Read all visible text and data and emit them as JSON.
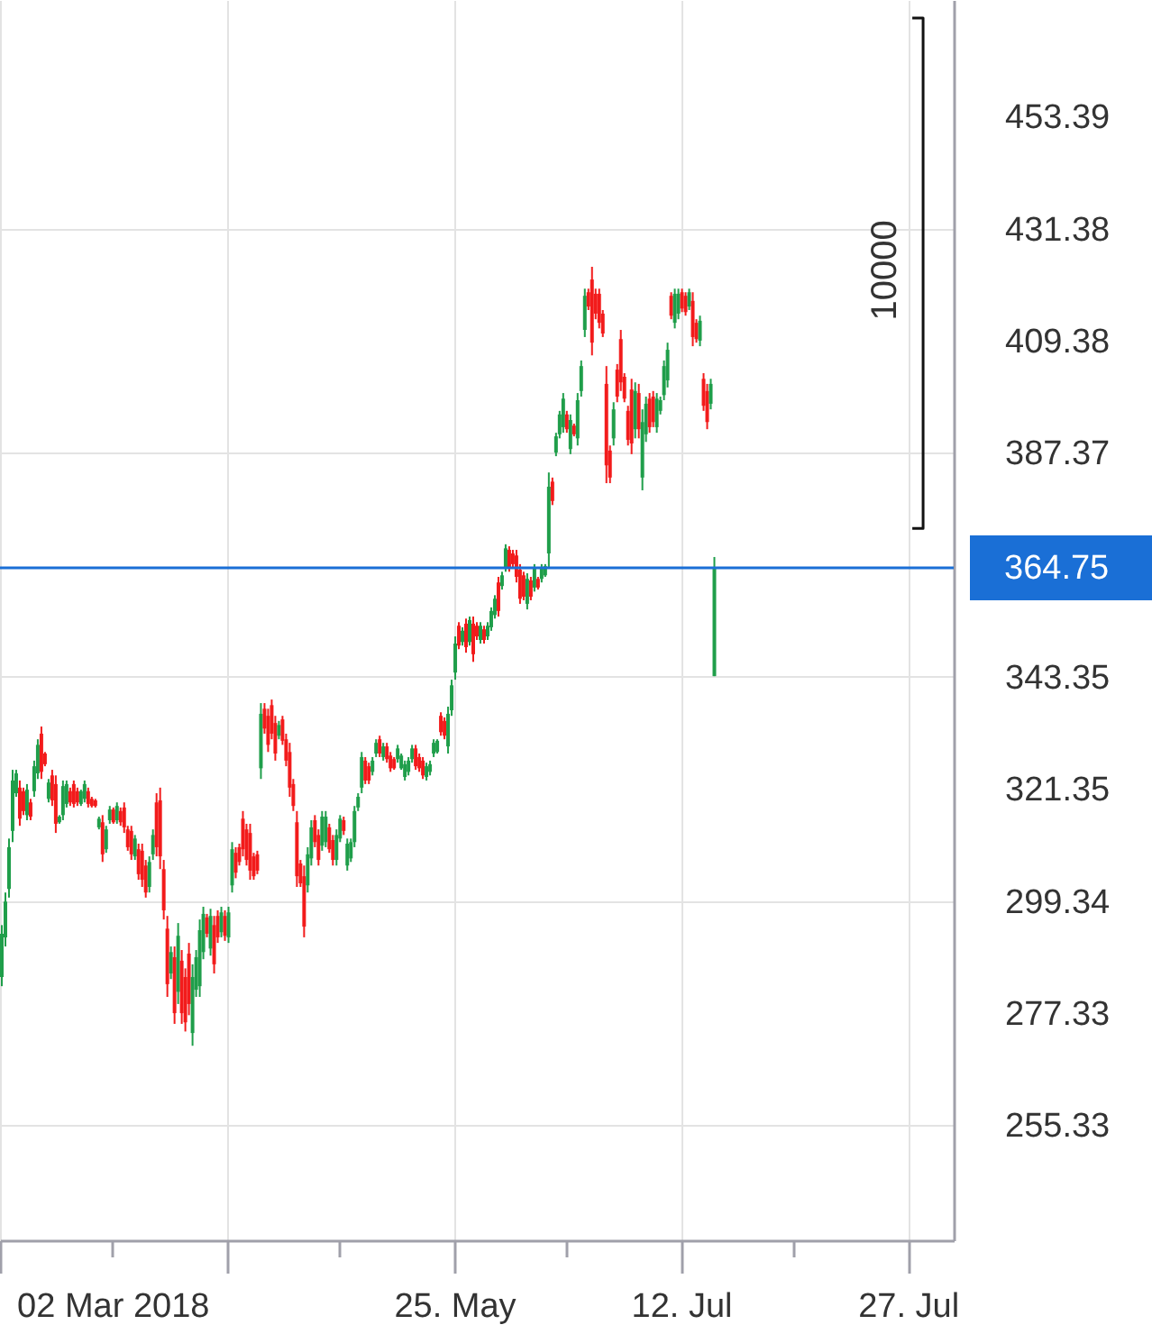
{
  "chart_data": {
    "type": "candlestick",
    "categories": [
      null,
      null,
      null,
      null,
      null,
      null,
      null,
      null,
      null,
      null,
      null,
      null,
      null,
      null,
      null,
      null,
      null,
      null,
      null,
      null,
      null,
      null,
      null,
      null,
      null,
      null,
      null,
      null,
      null,
      null,
      null,
      "02 Mar 2018",
      null,
      null,
      null,
      null,
      null,
      null,
      null,
      null,
      null,
      null,
      null,
      null,
      null,
      null,
      null,
      null,
      null,
      null,
      null,
      null,
      null,
      null,
      null,
      null,
      null,
      null,
      null,
      null,
      null,
      null,
      null,
      null,
      null,
      null,
      null,
      null,
      null,
      null,
      null,
      null,
      null,
      null,
      null,
      null,
      null,
      null,
      null,
      null,
      null,
      null,
      null,
      null,
      null,
      null,
      null,
      null,
      null,
      null,
      null,
      null,
      null,
      null,
      null,
      null,
      null,
      null,
      null,
      null,
      null,
      null,
      null,
      null,
      null,
      null,
      null,
      null,
      null,
      null,
      null,
      null,
      null,
      null,
      null,
      null,
      null,
      null,
      null,
      null,
      null,
      null,
      null,
      null,
      null,
      null,
      "25. May",
      null,
      null,
      null,
      null,
      null,
      null,
      null,
      null,
      null,
      null,
      null,
      null,
      null,
      null,
      null,
      null,
      null,
      null,
      null,
      null,
      null,
      null,
      null,
      null,
      null,
      null,
      null,
      null,
      null,
      null,
      null,
      null,
      null,
      null,
      null,
      null,
      null,
      null,
      null,
      null,
      null,
      null,
      null,
      null,
      null,
      null,
      null,
      null,
      null,
      null,
      null,
      null,
      null,
      null,
      null,
      null,
      null,
      null,
      null,
      null,
      null,
      null,
      "12. Jul",
      null,
      null,
      null,
      null,
      null,
      null,
      null,
      null,
      null,
      null,
      null,
      null,
      null,
      null,
      null,
      null,
      null,
      null,
      null,
      null,
      null,
      null,
      null,
      null,
      null,
      null,
      null,
      null,
      null,
      null,
      null,
      null,
      null,
      null,
      null,
      null,
      null,
      null,
      null,
      null,
      null,
      null,
      null,
      null,
      null,
      null,
      null,
      null,
      null,
      null,
      null,
      null,
      null,
      null,
      null,
      null,
      null,
      null,
      null,
      null,
      null,
      null,
      "27. Jul",
      null,
      null,
      null,
      null,
      null,
      null,
      null,
      null,
      null,
      null,
      null,
      null
    ],
    "ohlc": [
      [
        284.4,
        294.6,
        282.6,
        292.9
      ],
      [
        292.2,
        301.0,
        290.4,
        299.2
      ],
      [
        301.7,
        311.6,
        300.0,
        309.9
      ],
      [
        313.1,
        325.1,
        310.9,
        323.0
      ],
      [
        320.5,
        325.1,
        319.8,
        324.4
      ],
      [
        321.6,
        323.0,
        314.1,
        315.5
      ],
      [
        320.9,
        321.6,
        316.2,
        317.0
      ],
      [
        316.2,
        322.3,
        315.2,
        321.2
      ],
      [
        318.7,
        319.4,
        315.2,
        315.9
      ],
      [
        320.9,
        326.9,
        319.8,
        325.8
      ],
      [
        324.4,
        331.1,
        323.3,
        330.0
      ],
      [
        332.2,
        333.6,
        323.3,
        324.7
      ],
      [
        328.3,
        328.6,
        325.8,
        326.2
      ],
      [
        319.4,
        323.3,
        318.7,
        322.6
      ],
      [
        324.0,
        325.1,
        318.0,
        319.1
      ],
      [
        322.3,
        324.0,
        312.7,
        314.5
      ],
      [
        314.8,
        316.2,
        314.5,
        315.9
      ],
      [
        316.2,
        323.0,
        315.2,
        321.9
      ],
      [
        318.4,
        323.0,
        317.7,
        322.3
      ],
      [
        320.9,
        321.6,
        318.0,
        318.7
      ],
      [
        322.3,
        323.0,
        317.7,
        318.4
      ],
      [
        320.9,
        321.6,
        318.0,
        318.7
      ],
      [
        318.4,
        321.2,
        318.0,
        320.9
      ],
      [
        319.4,
        323.0,
        318.7,
        322.3
      ],
      [
        320.9,
        321.6,
        317.7,
        318.4
      ],
      [
        319.4,
        319.8,
        317.7,
        318.0
      ],
      [
        319.1,
        319.4,
        317.7,
        318.0
      ],
      [
        313.8,
        315.9,
        313.4,
        315.5
      ],
      [
        314.8,
        316.2,
        307.0,
        308.5
      ],
      [
        309.5,
        314.1,
        308.8,
        313.4
      ],
      [
        315.2,
        318.0,
        314.5,
        317.3
      ],
      [
        317.3,
        317.7,
        314.5,
        314.8
      ],
      [
        315.2,
        318.7,
        314.5,
        318.0
      ],
      [
        317.0,
        317.7,
        314.1,
        314.8
      ],
      [
        317.7,
        318.7,
        312.7,
        313.8
      ],
      [
        313.4,
        314.1,
        309.2,
        309.9
      ],
      [
        313.1,
        314.1,
        307.4,
        308.5
      ],
      [
        308.1,
        312.3,
        307.4,
        311.6
      ],
      [
        309.5,
        310.6,
        303.5,
        304.6
      ],
      [
        309.2,
        310.6,
        302.1,
        303.5
      ],
      [
        306.3,
        307.4,
        300.0,
        301.0
      ],
      [
        302.1,
        308.1,
        301.0,
        307.0
      ],
      [
        308.5,
        313.4,
        307.4,
        312.3
      ],
      [
        318.7,
        320.5,
        308.1,
        309.9
      ],
      [
        319.1,
        321.6,
        305.6,
        308.1
      ],
      [
        305.6,
        307.4,
        295.7,
        297.5
      ],
      [
        293.9,
        296.4,
        280.5,
        283.0
      ],
      [
        285.1,
        290.4,
        284.0,
        289.3
      ],
      [
        288.3,
        290.4,
        275.2,
        277.3
      ],
      [
        281.5,
        295.0,
        279.1,
        292.5
      ],
      [
        287.6,
        289.7,
        275.2,
        277.3
      ],
      [
        284.4,
        286.1,
        273.7,
        275.5
      ],
      [
        289.0,
        291.1,
        276.9,
        279.1
      ],
      [
        273.4,
        286.9,
        270.9,
        284.4
      ],
      [
        281.9,
        289.7,
        280.5,
        288.3
      ],
      [
        282.6,
        295.7,
        280.5,
        293.6
      ],
      [
        289.3,
        298.2,
        287.9,
        296.8
      ],
      [
        296.1,
        296.8,
        292.2,
        292.9
      ],
      [
        290.0,
        297.8,
        288.6,
        296.4
      ],
      [
        294.6,
        296.4,
        285.1,
        286.9
      ],
      [
        296.4,
        297.5,
        291.1,
        292.2
      ],
      [
        293.2,
        298.2,
        292.2,
        297.1
      ],
      [
        296.4,
        297.5,
        291.5,
        292.5
      ],
      [
        292.2,
        298.2,
        291.1,
        297.1
      ],
      [
        302.4,
        310.9,
        301.0,
        309.5
      ],
      [
        308.8,
        309.9,
        303.8,
        304.9
      ],
      [
        309.9,
        310.6,
        306.3,
        307.0
      ],
      [
        315.5,
        317.0,
        308.1,
        309.5
      ],
      [
        313.4,
        314.5,
        306.3,
        307.4
      ],
      [
        312.7,
        314.5,
        303.5,
        305.3
      ],
      [
        308.1,
        308.8,
        303.5,
        304.2
      ],
      [
        308.5,
        309.2,
        304.6,
        305.3
      ],
      [
        325.4,
        338.2,
        323.3,
        336.1
      ],
      [
        337.1,
        338.2,
        332.2,
        333.2
      ],
      [
        335.7,
        337.1,
        328.6,
        330.0
      ],
      [
        337.8,
        338.9,
        331.1,
        332.2
      ],
      [
        334.3,
        335.7,
        326.9,
        328.3
      ],
      [
        331.8,
        334.7,
        331.1,
        333.9
      ],
      [
        335.0,
        335.7,
        330.0,
        330.8
      ],
      [
        331.1,
        332.2,
        325.8,
        326.9
      ],
      [
        328.6,
        330.4,
        319.8,
        321.6
      ],
      [
        322.3,
        323.3,
        317.0,
        318.0
      ],
      [
        314.8,
        317.0,
        302.1,
        304.2
      ],
      [
        306.7,
        307.4,
        302.1,
        302.8
      ],
      [
        304.2,
        306.3,
        292.2,
        294.3
      ],
      [
        302.4,
        309.9,
        301.0,
        308.5
      ],
      [
        307.7,
        315.2,
        306.3,
        313.8
      ],
      [
        315.2,
        316.2,
        309.9,
        310.9
      ],
      [
        312.3,
        313.4,
        306.3,
        307.4
      ],
      [
        310.2,
        317.0,
        309.2,
        315.9
      ],
      [
        310.9,
        317.0,
        309.9,
        315.9
      ],
      [
        313.8,
        314.5,
        308.8,
        309.5
      ],
      [
        311.3,
        312.3,
        306.3,
        307.4
      ],
      [
        307.4,
        313.4,
        306.3,
        312.3
      ],
      [
        311.6,
        316.2,
        310.9,
        315.5
      ],
      [
        315.2,
        315.9,
        312.3,
        313.1
      ],
      [
        306.3,
        311.6,
        305.3,
        310.6
      ],
      [
        307.7,
        311.6,
        307.0,
        310.9
      ],
      [
        310.9,
        318.0,
        309.9,
        317.0
      ],
      [
        317.7,
        320.5,
        317.0,
        319.8
      ],
      [
        321.6,
        328.6,
        320.5,
        327.6
      ],
      [
        326.9,
        327.6,
        322.3,
        323.0
      ],
      [
        325.8,
        326.5,
        322.3,
        323.0
      ],
      [
        324.7,
        327.6,
        324.0,
        326.9
      ],
      [
        328.3,
        331.1,
        327.6,
        330.4
      ],
      [
        331.1,
        331.8,
        327.6,
        328.3
      ],
      [
        327.6,
        330.4,
        326.9,
        329.7
      ],
      [
        329.7,
        330.4,
        326.5,
        327.2
      ],
      [
        327.9,
        328.6,
        324.7,
        325.4
      ],
      [
        327.2,
        327.6,
        325.1,
        325.4
      ],
      [
        327.2,
        330.0,
        326.5,
        329.3
      ],
      [
        325.4,
        328.3,
        325.1,
        327.9
      ],
      [
        323.7,
        326.9,
        323.0,
        326.2
      ],
      [
        324.7,
        327.6,
        324.0,
        326.9
      ],
      [
        327.2,
        330.0,
        326.5,
        329.3
      ],
      [
        329.3,
        330.0,
        325.1,
        325.8
      ],
      [
        327.6,
        328.3,
        324.7,
        325.4
      ],
      [
        326.9,
        327.6,
        323.3,
        324.0
      ],
      [
        323.7,
        326.5,
        323.0,
        325.8
      ],
      [
        324.7,
        326.9,
        324.0,
        326.2
      ],
      [
        328.3,
        331.1,
        327.6,
        330.4
      ],
      [
        328.6,
        331.1,
        328.3,
        330.8
      ],
      [
        335.7,
        336.4,
        331.8,
        332.5
      ],
      [
        334.7,
        335.4,
        331.1,
        331.8
      ],
      [
        329.7,
        337.5,
        328.3,
        336.1
      ],
      [
        336.8,
        342.8,
        335.7,
        341.7
      ],
      [
        344.2,
        351.3,
        342.8,
        349.9
      ],
      [
        353.4,
        354.1,
        348.8,
        349.5
      ],
      [
        350.2,
        353.1,
        349.5,
        352.4
      ],
      [
        353.8,
        354.8,
        348.1,
        349.2
      ],
      [
        350.2,
        355.2,
        349.5,
        354.5
      ],
      [
        353.8,
        355.2,
        346.3,
        347.8
      ],
      [
        353.4,
        354.1,
        350.6,
        351.3
      ],
      [
        350.6,
        354.1,
        349.9,
        353.4
      ],
      [
        352.7,
        353.4,
        349.9,
        350.6
      ],
      [
        351.3,
        354.1,
        350.6,
        353.4
      ],
      [
        353.1,
        357.0,
        352.4,
        356.3
      ],
      [
        355.5,
        359.4,
        354.8,
        358.7
      ],
      [
        361.9,
        363.0,
        355.2,
        356.3
      ],
      [
        361.2,
        364.0,
        360.5,
        363.3
      ],
      [
        364.8,
        369.4,
        364.0,
        368.6
      ],
      [
        368.3,
        369.0,
        364.0,
        364.8
      ],
      [
        367.6,
        368.3,
        364.8,
        365.5
      ],
      [
        367.2,
        368.3,
        361.9,
        363.0
      ],
      [
        364.4,
        365.5,
        357.7,
        358.7
      ],
      [
        363.3,
        364.0,
        358.4,
        359.1
      ],
      [
        357.7,
        363.7,
        356.6,
        362.6
      ],
      [
        362.3,
        363.0,
        358.4,
        359.1
      ],
      [
        360.9,
        365.5,
        360.1,
        364.8
      ],
      [
        362.6,
        363.0,
        360.5,
        360.9
      ],
      [
        362.6,
        365.5,
        361.9,
        364.8
      ],
      [
        363.3,
        365.5,
        363.0,
        365.1
      ],
      [
        367.6,
        383.5,
        364.8,
        380.7
      ],
      [
        381.7,
        382.5,
        377.1,
        377.9
      ],
      [
        387.4,
        391.3,
        386.7,
        390.6
      ],
      [
        391.0,
        395.6,
        390.2,
        394.9
      ],
      [
        392.4,
        399.1,
        391.3,
        398.0
      ],
      [
        394.9,
        395.6,
        391.3,
        392.0
      ],
      [
        388.1,
        394.9,
        387.1,
        393.8
      ],
      [
        392.7,
        393.1,
        390.6,
        391.0
      ],
      [
        390.2,
        399.1,
        388.8,
        397.7
      ],
      [
        399.5,
        405.5,
        398.4,
        404.4
      ],
      [
        411.5,
        419.6,
        410.1,
        418.2
      ],
      [
        418.9,
        419.6,
        415.4,
        416.1
      ],
      [
        421.4,
        423.9,
        406.5,
        409.0
      ],
      [
        418.6,
        419.6,
        413.6,
        414.7
      ],
      [
        418.6,
        419.6,
        411.8,
        412.9
      ],
      [
        414.7,
        415.4,
        410.1,
        410.8
      ],
      [
        400.9,
        404.4,
        381.4,
        384.9
      ],
      [
        387.8,
        388.8,
        381.4,
        382.5
      ],
      [
        390.2,
        397.3,
        388.8,
        395.9
      ],
      [
        403.7,
        404.8,
        397.3,
        398.4
      ],
      [
        409.7,
        411.5,
        399.5,
        401.2
      ],
      [
        402.3,
        403.0,
        397.3,
        398.0
      ],
      [
        395.6,
        396.6,
        388.8,
        389.9
      ],
      [
        399.8,
        401.9,
        387.1,
        389.2
      ],
      [
        392.0,
        401.2,
        390.2,
        399.5
      ],
      [
        399.1,
        400.9,
        390.2,
        392.0
      ],
      [
        382.5,
        395.9,
        380.0,
        393.4
      ],
      [
        391.0,
        398.4,
        389.5,
        397.0
      ],
      [
        398.0,
        399.1,
        391.3,
        392.4
      ],
      [
        398.4,
        399.5,
        392.4,
        393.4
      ],
      [
        392.4,
        399.1,
        391.3,
        398.0
      ],
      [
        395.6,
        398.4,
        394.9,
        397.7
      ],
      [
        398.7,
        405.5,
        397.7,
        404.4
      ],
      [
        401.6,
        409.0,
        400.2,
        407.6
      ],
      [
        418.2,
        418.9,
        413.6,
        414.3
      ],
      [
        412.9,
        419.6,
        411.8,
        418.6
      ],
      [
        414.7,
        419.6,
        413.6,
        418.6
      ],
      [
        418.9,
        419.6,
        415.0,
        415.7
      ],
      [
        418.2,
        418.9,
        414.3,
        415.0
      ],
      [
        416.1,
        419.6,
        415.4,
        418.9
      ],
      [
        417.2,
        418.9,
        408.3,
        410.1
      ],
      [
        412.9,
        413.6,
        409.0,
        409.7
      ],
      [
        409.4,
        414.3,
        408.3,
        413.3
      ],
      [
        401.9,
        403.0,
        395.6,
        396.6
      ],
      [
        399.5,
        400.9,
        392.0,
        393.4
      ],
      [
        397.0,
        401.9,
        395.9,
        400.9
      ],
      [
        343.5,
        366.9,
        343.5,
        364.75
      ],
      null,
      null,
      null,
      null,
      null,
      null,
      null,
      null,
      null,
      null,
      null,
      null,
      null,
      null,
      null,
      null,
      null,
      null,
      null,
      null,
      null,
      null,
      null,
      null,
      null,
      null,
      null,
      null,
      null,
      null,
      null,
      null,
      null,
      null,
      null,
      null,
      null,
      null,
      null,
      null,
      null,
      null,
      null,
      null,
      null,
      null,
      null,
      null,
      null,
      null,
      null,
      null,
      null,
      null,
      null,
      null,
      null,
      null,
      null,
      null,
      null,
      null,
      null,
      null,
      null,
      null
    ],
    "colors": [
      "#1f9e4a",
      "#1f9e4a",
      "#1f9e4a",
      "#1f9e4a",
      "#1f9e4a",
      "#f21b1b",
      "#f21b1b",
      "#1f9e4a",
      "#f21b1b",
      "#1f9e4a",
      "#1f9e4a",
      "#f21b1b",
      "#f21b1b",
      "#1f9e4a",
      "#f21b1b",
      "#f21b1b",
      "#1f9e4a",
      "#1f9e4a",
      "#1f9e4a",
      "#f21b1b",
      "#f21b1b",
      "#f21b1b",
      "#1f9e4a",
      "#1f9e4a",
      "#f21b1b",
      "#f21b1b",
      "#f21b1b",
      "#1f9e4a",
      "#f21b1b",
      "#1f9e4a",
      "#1f9e4a",
      "#f21b1b",
      "#1f9e4a",
      "#f21b1b",
      "#f21b1b",
      "#f21b1b",
      "#f21b1b",
      "#1f9e4a",
      "#f21b1b",
      "#f21b1b",
      "#f21b1b",
      "#1f9e4a",
      "#1f9e4a",
      "#f21b1b",
      "#f21b1b",
      "#f21b1b",
      "#f21b1b",
      "#1f9e4a",
      "#f21b1b",
      "#1f9e4a",
      "#f21b1b",
      "#f21b1b",
      "#f21b1b",
      "#1f9e4a",
      "#1f9e4a",
      "#1f9e4a",
      "#1f9e4a",
      "#f21b1b",
      "#1f9e4a",
      "#f21b1b",
      "#f21b1b",
      "#1f9e4a",
      "#f21b1b",
      "#1f9e4a",
      "#1f9e4a",
      "#f21b1b",
      "#f21b1b",
      "#f21b1b",
      "#f21b1b",
      "#f21b1b",
      "#f21b1b",
      "#f21b1b",
      "#1f9e4a",
      "#f21b1b",
      "#f21b1b",
      "#f21b1b",
      "#f21b1b",
      "#1f9e4a",
      "#f21b1b",
      "#f21b1b",
      "#f21b1b",
      "#f21b1b",
      "#f21b1b",
      "#f21b1b",
      "#f21b1b",
      "#1f9e4a",
      "#1f9e4a",
      "#f21b1b",
      "#f21b1b",
      "#1f9e4a",
      "#1f9e4a",
      "#f21b1b",
      "#f21b1b",
      "#1f9e4a",
      "#1f9e4a",
      "#f21b1b",
      "#1f9e4a",
      "#1f9e4a",
      "#1f9e4a",
      "#1f9e4a",
      "#1f9e4a",
      "#f21b1b",
      "#f21b1b",
      "#1f9e4a",
      "#1f9e4a",
      "#f21b1b",
      "#1f9e4a",
      "#f21b1b",
      "#f21b1b",
      "#f21b1b",
      "#1f9e4a",
      "#1f9e4a",
      "#1f9e4a",
      "#1f9e4a",
      "#1f9e4a",
      "#f21b1b",
      "#f21b1b",
      "#f21b1b",
      "#1f9e4a",
      "#1f9e4a",
      "#1f9e4a",
      "#1f9e4a",
      "#f21b1b",
      "#f21b1b",
      "#1f9e4a",
      "#1f9e4a",
      "#1f9e4a",
      "#f21b1b",
      "#1f9e4a",
      "#f21b1b",
      "#1f9e4a",
      "#f21b1b",
      "#f21b1b",
      "#1f9e4a",
      "#f21b1b",
      "#1f9e4a",
      "#1f9e4a",
      "#1f9e4a",
      "#f21b1b",
      "#1f9e4a",
      "#1f9e4a",
      "#f21b1b",
      "#f21b1b",
      "#f21b1b",
      "#f21b1b",
      "#f21b1b",
      "#1f9e4a",
      "#f21b1b",
      "#1f9e4a",
      "#f21b1b",
      "#1f9e4a",
      "#1f9e4a",
      "#1f9e4a",
      "#f21b1b",
      "#1f9e4a",
      "#1f9e4a",
      "#1f9e4a",
      "#f21b1b",
      "#1f9e4a",
      "#f21b1b",
      "#1f9e4a",
      "#1f9e4a",
      "#1f9e4a",
      "#f21b1b",
      "#f21b1b",
      "#f21b1b",
      "#f21b1b",
      "#f21b1b",
      "#f21b1b",
      "#f21b1b",
      "#1f9e4a",
      "#f21b1b",
      "#f21b1b",
      "#f21b1b",
      "#f21b1b",
      "#f21b1b",
      "#1f9e4a",
      "#f21b1b",
      "#1f9e4a",
      "#1f9e4a",
      "#f21b1b",
      "#f21b1b",
      "#1f9e4a",
      "#1f9e4a",
      "#1f9e4a",
      "#1f9e4a",
      "#f21b1b",
      "#1f9e4a",
      "#1f9e4a",
      "#f21b1b",
      "#f21b1b",
      "#1f9e4a",
      "#f21b1b",
      "#f21b1b",
      "#1f9e4a",
      "#f21b1b",
      "#f21b1b",
      "#1f9e4a",
      "#1f9e4a",
      null,
      null,
      null,
      null,
      null,
      null,
      null,
      null,
      null,
      null,
      null,
      null,
      null,
      null,
      null,
      null,
      null,
      null,
      null,
      null,
      null,
      null,
      null,
      null,
      null,
      null,
      null,
      null,
      null,
      null,
      null,
      null,
      null,
      null,
      null,
      null,
      null,
      null,
      null,
      null,
      null,
      null,
      null,
      null,
      null,
      null,
      null,
      null,
      null,
      null,
      null,
      null,
      null,
      null,
      null,
      null,
      null,
      null,
      null,
      null,
      null,
      null,
      null,
      null,
      null,
      null
    ],
    "ylim": [
      232.7,
      476.3
    ],
    "yticks": [
      255.33,
      277.33,
      299.34,
      321.35,
      343.35,
      387.37,
      409.38,
      431.38,
      453.39
    ],
    "grid": true,
    "ref_lines": [
      {
        "axis": "y",
        "value": 364.75,
        "label": "364.75",
        "color": "#1a6fd6"
      }
    ],
    "annotations": [
      "10000"
    ]
  }
}
